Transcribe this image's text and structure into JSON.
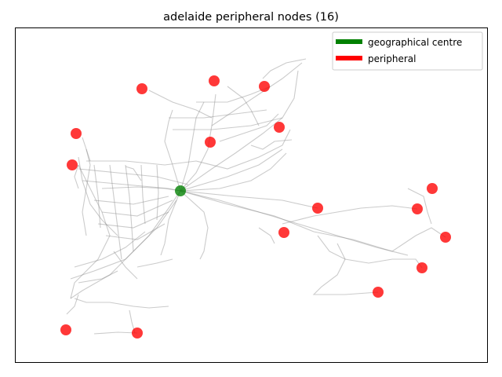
{
  "chart_data": {
    "type": "scatter",
    "title": "adelaide peripheral nodes (16)",
    "xlabel": "",
    "ylabel": "",
    "axis_ticks": "hidden",
    "grid": false,
    "legend_position": "top-right",
    "legend": [
      {
        "label": "geographical centre",
        "color": "#008000"
      },
      {
        "label": "peripheral",
        "color": "#ff0000"
      }
    ],
    "background_network": {
      "description_color": "#a9a9a9",
      "kind": "transit route lines"
    },
    "series": [
      {
        "name": "geographical centre",
        "color": "#008000",
        "points": [
          [
            230,
            243
          ]
        ]
      },
      {
        "name": "peripheral",
        "color": "#ff0000",
        "points": [
          [
            181,
            113
          ],
          [
            273,
            103
          ],
          [
            337,
            110
          ],
          [
            97,
            170
          ],
          [
            356,
            162
          ],
          [
            268,
            181
          ],
          [
            92,
            210
          ],
          [
            551,
            240
          ],
          [
            405,
            265
          ],
          [
            532,
            266
          ],
          [
            362,
            296
          ],
          [
            568,
            302
          ],
          [
            538,
            341
          ],
          [
            482,
            372
          ],
          [
            84,
            420
          ],
          [
            175,
            424
          ]
        ]
      }
    ]
  }
}
